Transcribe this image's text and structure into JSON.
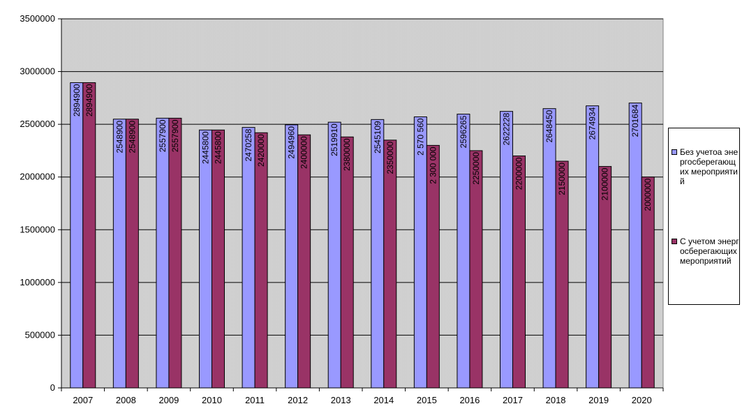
{
  "chart_data": {
    "type": "bar",
    "categories": [
      "2007",
      "2008",
      "2009",
      "2010",
      "2011",
      "2012",
      "2013",
      "2014",
      "2015",
      "2016",
      "2017",
      "2018",
      "2019",
      "2020"
    ],
    "series": [
      {
        "name": "Без учетоа энергосберегающих мероприятий",
        "color": "#9999ff",
        "values": [
          2894900,
          2548900,
          2557900,
          2445800,
          2470258,
          2494960,
          2519910,
          2545109,
          2570560,
          2596265,
          2622228,
          2648450,
          2674934,
          2701684
        ],
        "labels": [
          "2894900",
          "2548900",
          "2557900",
          "2445800",
          "2470258",
          "2494960",
          "2519910",
          "2545109",
          "2 570 560",
          "2596265",
          "2622228",
          "2648450",
          "2674934",
          "2701684"
        ]
      },
      {
        "name": "С учетом энергосберегающих мероприятий",
        "color": "#993366",
        "values": [
          2894900,
          2548900,
          2557900,
          2445800,
          2420000,
          2400000,
          2380000,
          2350000,
          2300000,
          2250000,
          2200000,
          2150000,
          2100000,
          2000000
        ],
        "labels": [
          "2894900",
          "2548900",
          "2557900",
          "2445800",
          "2420000",
          "2400000",
          "2380000",
          "2350000",
          "2 300 000",
          "2250000",
          "2200000",
          "2150000",
          "2100000",
          "2000000"
        ]
      }
    ],
    "yticks": [
      "0",
      "500000",
      "1000000",
      "1500000",
      "2000000",
      "2500000",
      "3000000",
      "3500000"
    ],
    "ylim": [
      0,
      3500000
    ],
    "grid": true,
    "legend": "right",
    "plot_background": "#c0c0c0"
  }
}
